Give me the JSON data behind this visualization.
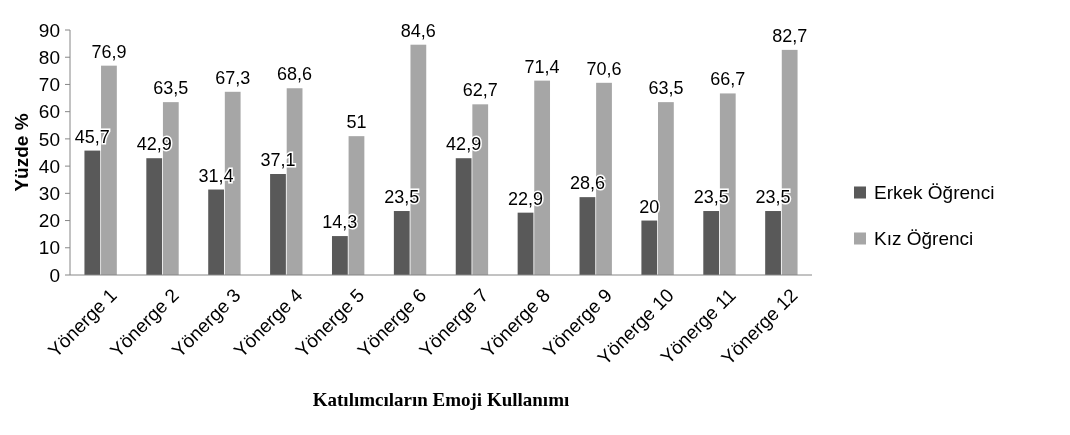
{
  "chart_data": {
    "type": "bar",
    "xlabel": "Katılımcıların Emoji Kullanımı",
    "ylabel": "Yüzde %",
    "categories": [
      "Yönerge 1",
      "Yönerge 2",
      "Yönerge 3",
      "Yönerge 4",
      "Yönerge 5",
      "Yönerge 6",
      "Yönerge 7",
      "Yönerge 8",
      "Yönerge 9",
      "Yönerge 10",
      "Yönerge 11",
      "Yönerge 12"
    ],
    "series": [
      {
        "name": "Erkek Öğrenci",
        "color": "#595959",
        "values": [
          45.7,
          42.9,
          31.4,
          37.1,
          14.3,
          23.5,
          42.9,
          22.9,
          28.6,
          20,
          23.5,
          23.5
        ],
        "value_labels": [
          "45,7",
          "42,9",
          "31,4",
          "37,1",
          "14,3",
          "23,5",
          "42,9",
          "22,9",
          "28,6",
          "20",
          "23,5",
          "23,5"
        ]
      },
      {
        "name": "Kız Öğrenci",
        "color": "#a6a6a6",
        "values": [
          76.9,
          63.5,
          67.3,
          68.6,
          51,
          84.6,
          62.7,
          71.4,
          70.6,
          63.5,
          66.7,
          82.7
        ],
        "value_labels": [
          "76,9",
          "63,5",
          "67,3",
          "68,6",
          "51",
          "84,6",
          "62,7",
          "71,4",
          "70,6",
          "63,5",
          "66,7",
          "82,7"
        ]
      }
    ],
    "ylim": [
      0,
      90
    ],
    "yticks": [
      0,
      10,
      20,
      30,
      40,
      50,
      60,
      70,
      80,
      90
    ],
    "grid": false,
    "legend": "right"
  }
}
